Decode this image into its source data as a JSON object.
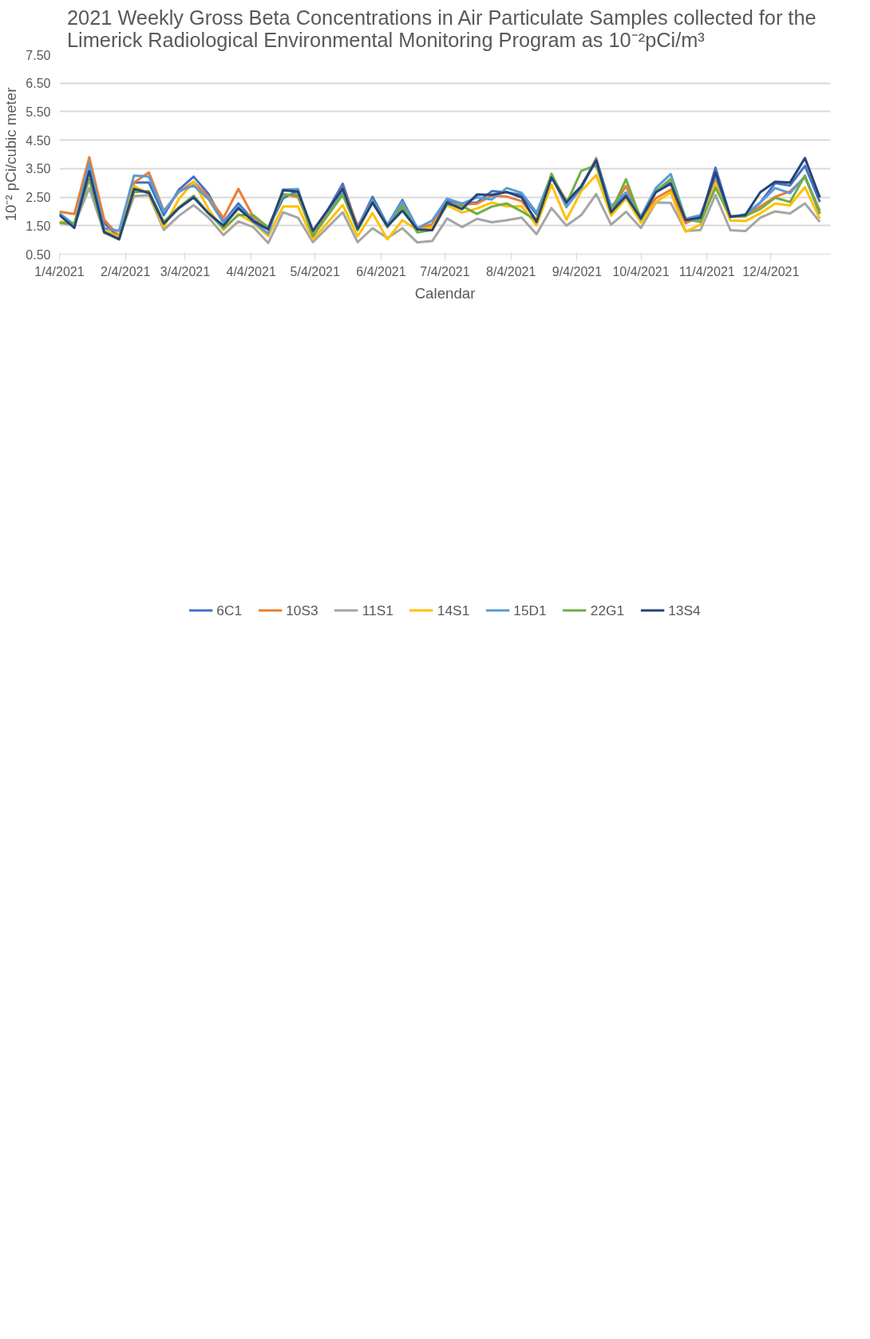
{
  "chart_data": {
    "type": "line",
    "title": "2021 Weekly  Gross Beta Concentrations in Air Particulate Samples collected for the\nLimerick Radiological Environmental Monitoring Program as 10⁻²pCi/m³",
    "xlabel": "Calendar",
    "ylabel": "10⁻² pCi/cubic meter",
    "x": [
      "2021-01-04",
      "2021-01-11",
      "2021-01-18",
      "2021-01-25",
      "2021-02-01",
      "2021-02-08",
      "2021-02-15",
      "2021-02-22",
      "2021-03-01",
      "2021-03-08",
      "2021-03-15",
      "2021-03-22",
      "2021-03-29",
      "2021-04-05",
      "2021-04-12",
      "2021-04-19",
      "2021-04-26",
      "2021-05-03",
      "2021-05-10",
      "2021-05-17",
      "2021-05-24",
      "2021-05-31",
      "2021-06-07",
      "2021-06-14",
      "2021-06-21",
      "2021-06-28",
      "2021-07-05",
      "2021-07-12",
      "2021-07-19",
      "2021-07-26",
      "2021-08-02",
      "2021-08-09",
      "2021-08-16",
      "2021-08-23",
      "2021-08-30",
      "2021-09-06",
      "2021-09-13",
      "2021-09-20",
      "2021-09-27",
      "2021-10-04",
      "2021-10-11",
      "2021-10-18",
      "2021-10-25",
      "2021-11-01",
      "2021-11-08",
      "2021-11-15",
      "2021-11-22",
      "2021-11-29",
      "2021-12-06",
      "2021-12-13",
      "2021-12-20",
      "2021-12-27"
    ],
    "xlim": [
      "2021-01-04",
      "2022-01-01"
    ],
    "xticks": [
      {
        "value": "2021-01-04",
        "label": "1/4/2021"
      },
      {
        "value": "2021-02-04",
        "label": "2/4/2021"
      },
      {
        "value": "2021-03-04",
        "label": "3/4/2021"
      },
      {
        "value": "2021-04-04",
        "label": "4/4/2021"
      },
      {
        "value": "2021-05-04",
        "label": "5/4/2021"
      },
      {
        "value": "2021-06-04",
        "label": "6/4/2021"
      },
      {
        "value": "2021-07-04",
        "label": "7/4/2021"
      },
      {
        "value": "2021-08-04",
        "label": "8/4/2021"
      },
      {
        "value": "2021-09-04",
        "label": "9/4/2021"
      },
      {
        "value": "2021-10-04",
        "label": "10/4/2021"
      },
      {
        "value": "2021-11-04",
        "label": "11/4/2021"
      },
      {
        "value": "2021-12-04",
        "label": "12/4/2021"
      }
    ],
    "ylim": [
      0.5,
      7.5
    ],
    "yticks": [
      {
        "value": 0.5,
        "label": "0.50"
      },
      {
        "value": 1.5,
        "label": "1.50"
      },
      {
        "value": 2.5,
        "label": "2.50"
      },
      {
        "value": 3.5,
        "label": "3.50"
      },
      {
        "value": 4.5,
        "label": "4.50"
      },
      {
        "value": 5.5,
        "label": "5.50"
      },
      {
        "value": 6.5,
        "label": "6.50"
      },
      {
        "value": 7.5,
        "label": "7.50"
      }
    ],
    "grid": "y",
    "legend": "bottom",
    "series": [
      {
        "name": "6C1",
        "color": "#4472c4",
        "values": [
          1.9,
          1.48,
          3.62,
          1.6,
          1.07,
          3.01,
          3.01,
          1.87,
          2.76,
          3.22,
          2.61,
          1.63,
          2.28,
          1.69,
          1.39,
          2.46,
          2.73,
          1.13,
          2.05,
          2.97,
          1.44,
          2.51,
          1.52,
          2.4,
          1.41,
          1.53,
          2.37,
          2.28,
          2.31,
          2.71,
          2.67,
          2.57,
          1.9,
          3.23,
          2.37,
          2.88,
          3.84,
          2.02,
          2.61,
          1.79,
          2.73,
          3.02,
          1.74,
          1.74,
          3.53,
          1.82,
          1.85,
          2.31,
          2.99,
          2.91,
          3.6,
          2.33
        ]
      },
      {
        "name": "10S3",
        "color": "#ed7d31",
        "values": [
          1.99,
          1.91,
          3.9,
          1.71,
          1.13,
          3.01,
          3.37,
          2.02,
          2.67,
          3.04,
          2.51,
          1.77,
          2.79,
          1.81,
          1.42,
          2.61,
          2.5,
          1.25,
          2.03,
          2.82,
          1.5,
          2.31,
          1.5,
          2.25,
          1.38,
          1.55,
          2.25,
          2.24,
          2.27,
          2.55,
          2.52,
          2.36,
          1.69,
          3.26,
          2.37,
          2.82,
          3.87,
          2.08,
          2.89,
          1.75,
          2.46,
          2.76,
          1.59,
          1.82,
          3.17,
          1.82,
          1.82,
          2.17,
          2.51,
          2.7,
          3.2,
          2.03
        ]
      },
      {
        "name": "11S1",
        "color": "#a5a5a5",
        "values": [
          1.59,
          1.53,
          2.82,
          1.25,
          1.07,
          2.54,
          2.57,
          1.35,
          1.84,
          2.22,
          1.78,
          1.17,
          1.65,
          1.45,
          0.89,
          1.97,
          1.78,
          0.92,
          1.45,
          1.97,
          0.92,
          1.41,
          1.07,
          1.41,
          0.91,
          0.96,
          1.75,
          1.45,
          1.74,
          1.62,
          1.69,
          1.78,
          1.2,
          2.12,
          1.5,
          1.87,
          2.61,
          1.53,
          1.99,
          1.42,
          2.31,
          2.3,
          1.31,
          1.35,
          2.58,
          1.34,
          1.31,
          1.78,
          2.0,
          1.93,
          2.28,
          1.63
        ]
      },
      {
        "name": "14S1",
        "color": "#ffc000",
        "values": [
          1.64,
          1.6,
          3.45,
          1.38,
          1.08,
          2.89,
          2.62,
          1.45,
          2.43,
          3.04,
          2.08,
          1.35,
          1.91,
          1.6,
          1.13,
          2.17,
          2.17,
          1.02,
          1.62,
          2.22,
          1.13,
          1.94,
          1.02,
          1.69,
          1.35,
          1.45,
          2.22,
          1.96,
          2.1,
          2.31,
          2.18,
          2.18,
          1.51,
          2.94,
          1.71,
          2.71,
          3.28,
          1.85,
          2.46,
          1.6,
          2.33,
          2.67,
          1.29,
          1.54,
          2.97,
          1.68,
          1.66,
          1.93,
          2.28,
          2.21,
          2.85,
          1.74
        ]
      },
      {
        "name": "15D1",
        "color": "#5b9bd5",
        "values": [
          1.94,
          1.53,
          3.69,
          1.41,
          1.32,
          3.26,
          3.22,
          1.99,
          2.7,
          2.91,
          2.43,
          1.6,
          2.19,
          1.63,
          1.22,
          2.77,
          2.78,
          1.13,
          1.9,
          2.67,
          1.45,
          2.4,
          1.52,
          2.34,
          1.41,
          1.68,
          2.45,
          2.27,
          2.49,
          2.42,
          2.82,
          2.65,
          1.96,
          3.26,
          2.15,
          2.82,
          3.82,
          2.18,
          2.67,
          1.82,
          2.82,
          3.31,
          1.74,
          1.87,
          3.26,
          1.8,
          1.9,
          2.31,
          2.82,
          2.64,
          3.23,
          1.91
        ]
      },
      {
        "name": "22G1",
        "color": "#70ad47",
        "values": [
          1.6,
          1.57,
          3.13,
          1.25,
          1.02,
          2.68,
          2.71,
          1.63,
          2.14,
          2.55,
          1.93,
          1.41,
          1.87,
          1.87,
          1.44,
          2.58,
          2.59,
          1.14,
          1.86,
          2.58,
          1.34,
          2.33,
          1.44,
          2.19,
          1.26,
          1.35,
          2.25,
          2.19,
          1.91,
          2.17,
          2.28,
          2.0,
          1.69,
          3.32,
          2.27,
          3.42,
          3.62,
          1.99,
          3.13,
          1.71,
          2.7,
          3.14,
          1.72,
          1.63,
          2.83,
          1.84,
          1.84,
          2.08,
          2.48,
          2.33,
          3.26,
          1.93
        ]
      },
      {
        "name": "13S4",
        "color": "#264478",
        "values": [
          1.87,
          1.42,
          3.41,
          1.28,
          1.02,
          2.79,
          2.65,
          1.57,
          2.11,
          2.49,
          1.93,
          1.5,
          2.11,
          1.66,
          1.37,
          2.74,
          2.7,
          1.32,
          2.06,
          2.8,
          1.39,
          2.31,
          1.48,
          2.03,
          1.37,
          1.34,
          2.31,
          2.08,
          2.59,
          2.58,
          2.68,
          2.49,
          1.63,
          3.19,
          2.31,
          2.88,
          3.79,
          1.97,
          2.54,
          1.75,
          2.67,
          2.97,
          1.69,
          1.79,
          3.37,
          1.81,
          1.87,
          2.67,
          3.04,
          3.01,
          3.87,
          2.49
        ]
      }
    ]
  }
}
